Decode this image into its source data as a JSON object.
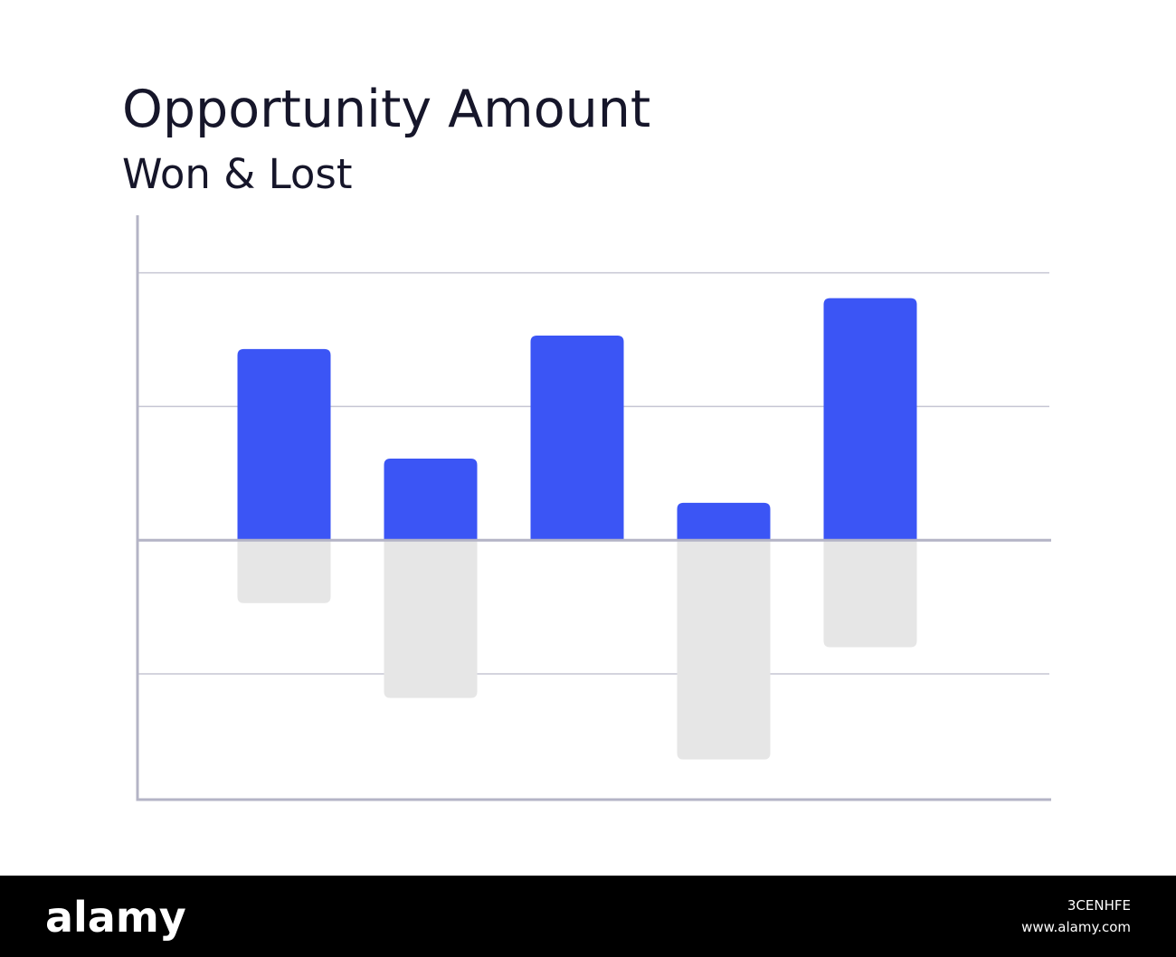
{
  "chart_data": {
    "type": "diverging-bar",
    "title": "Opportunity Amount",
    "subtitle": "Won & Lost",
    "series": [
      {
        "color": "#3b55f5",
        "values": [
          1.43,
          0.61,
          1.53,
          0.28,
          1.81
        ]
      },
      {
        "color": "#e6e6e6",
        "values": [
          -0.47,
          -1.18,
          0,
          -1.64,
          -0.8
        ]
      }
    ],
    "ylim": [
      -1.94,
      2.43
    ],
    "yticks": [
      -1,
      0,
      1,
      2
    ],
    "grid": true,
    "tick_labels": false
  },
  "watermark": {
    "logo": "alamy",
    "id": "3CENHFE",
    "url": "www.alamy.com"
  }
}
